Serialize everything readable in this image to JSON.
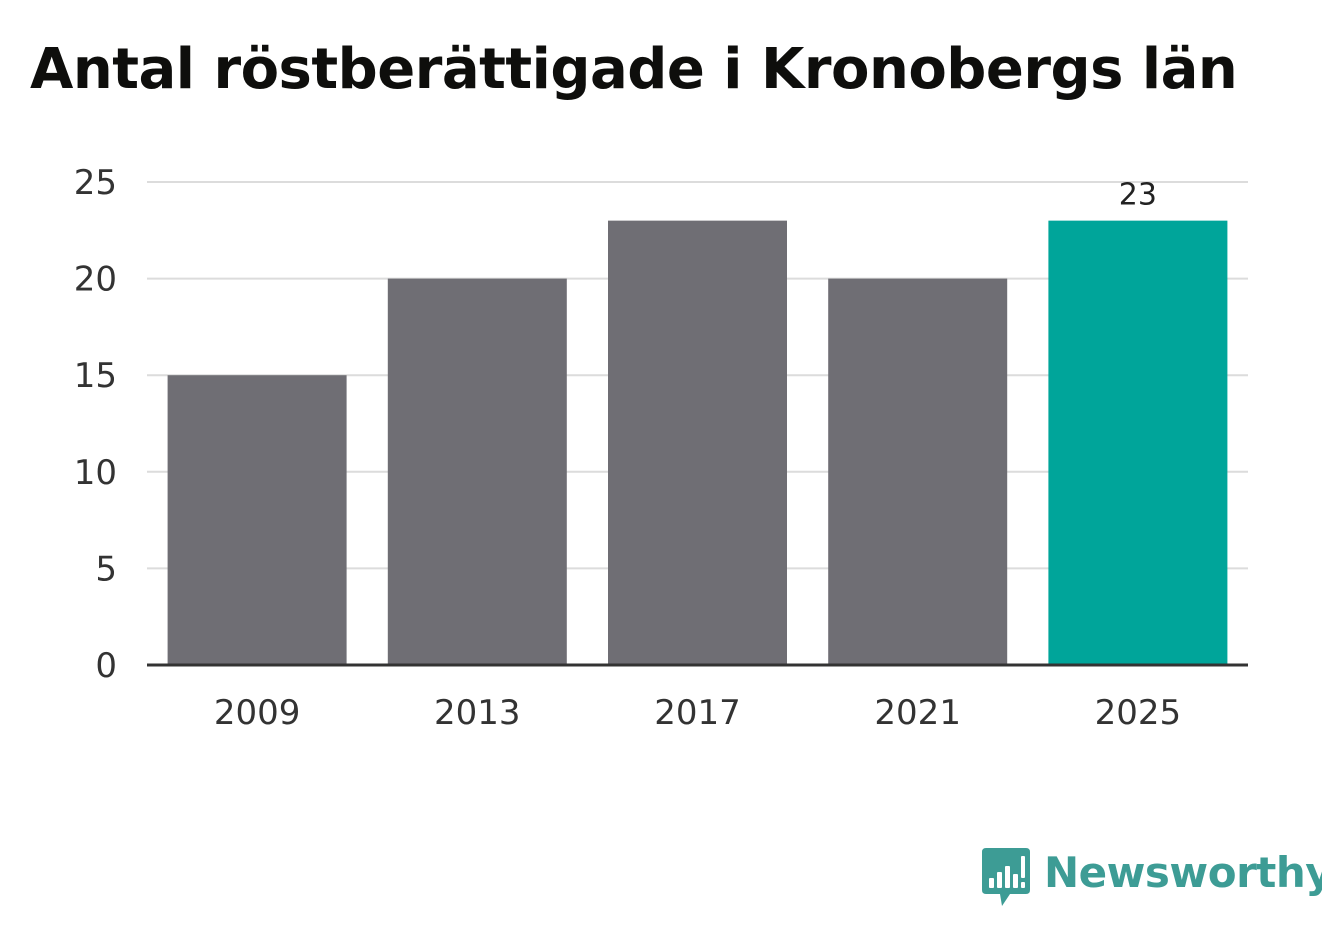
{
  "chart_data": {
    "type": "bar",
    "title": "Antal röstberättigade i Kronobergs län",
    "categories": [
      "2009",
      "2013",
      "2017",
      "2021",
      "2025"
    ],
    "values": [
      15,
      20,
      23,
      20,
      23
    ],
    "highlight_index": 4,
    "data_labels": [
      null,
      null,
      null,
      null,
      "23"
    ],
    "ylim": [
      0,
      25
    ],
    "yticks": [
      0,
      5,
      10,
      15,
      20,
      25
    ],
    "xlabel": "",
    "ylabel": "",
    "grid": true,
    "legend": "none",
    "colors": {
      "bar": "#6f6e74",
      "highlight": "#00a59a",
      "grid": "#dcdcdc",
      "axis": "#333333"
    }
  },
  "brand": {
    "name": "Newsworthy",
    "icon": "newsworthy-logo-icon",
    "color": "#3d9c95"
  }
}
